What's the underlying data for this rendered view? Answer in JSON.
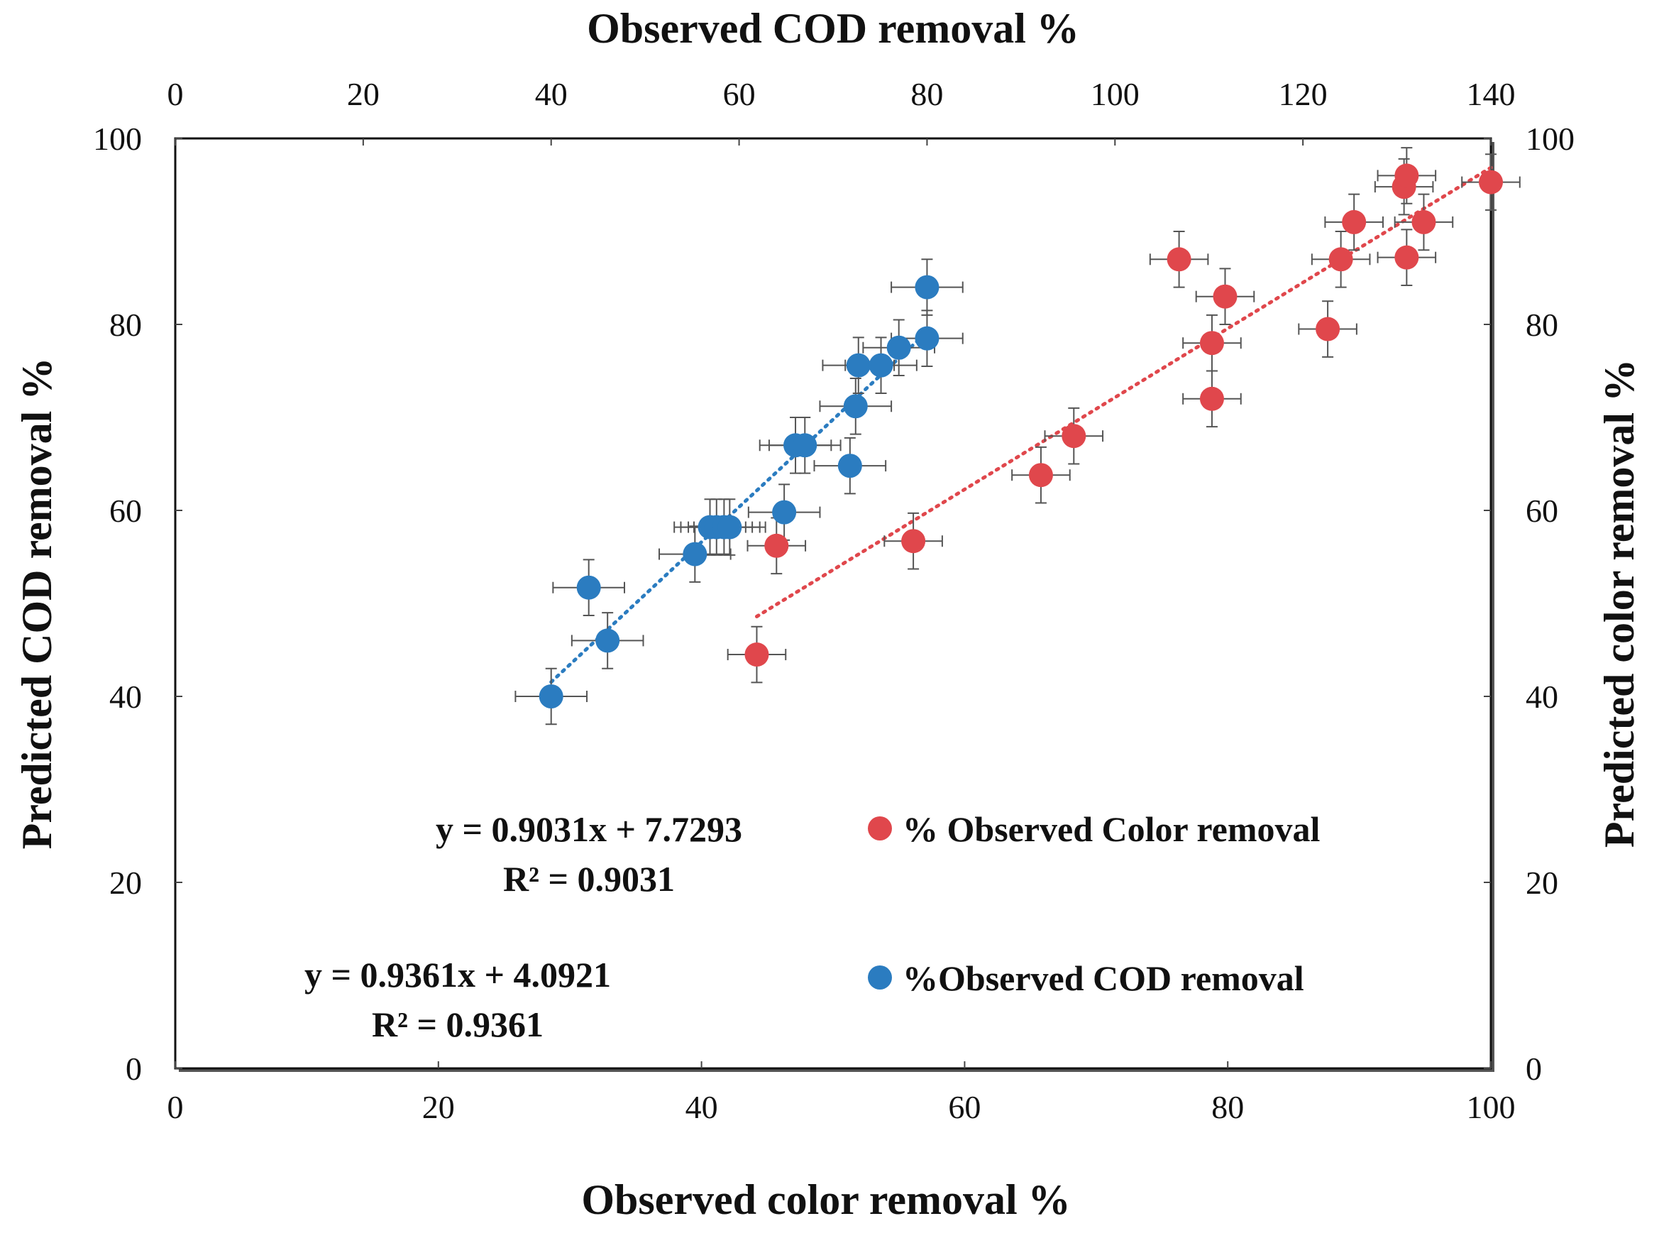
{
  "chart_data": {
    "type": "scatter",
    "title": "",
    "x_bottom_label": "Observed color removal %",
    "x_top_label": "Observed COD removal %",
    "y_left_label": "Predicted COD removal %",
    "y_right_label": "Predicted color removal %",
    "x_bottom_range": [
      0,
      100
    ],
    "x_top_range": [
      0,
      140
    ],
    "y_left_range": [
      0,
      100
    ],
    "y_right_range": [
      0,
      100
    ],
    "x_bottom_ticks": [
      "0",
      "20",
      "40",
      "60",
      "80",
      "100"
    ],
    "x_top_ticks": [
      "0",
      "20",
      "40",
      "60",
      "80",
      "100",
      "120",
      "140"
    ],
    "y_left_ticks": [
      "0",
      "20",
      "40",
      "60",
      "80",
      "100"
    ],
    "y_right_ticks": [
      "0",
      "20",
      "40",
      "60",
      "80",
      "100"
    ],
    "grid": false,
    "series": [
      {
        "name": "% Observed Color removal",
        "color": "#e0474c",
        "x_axis": "bottom",
        "y_axis": "right",
        "x": [
          44.2,
          45.7,
          56.1,
          65.8,
          68.3,
          76.3,
          78.8,
          78.8,
          79.8,
          87.6,
          88.6,
          89.6,
          93.4,
          93.6,
          93.6,
          94.9,
          100.0
        ],
        "y": [
          44.5,
          56.2,
          56.7,
          63.8,
          68.0,
          87.0,
          72.0,
          78.0,
          83.0,
          79.5,
          87.0,
          91.0,
          94.8,
          96.0,
          87.2,
          91.0,
          95.3
        ],
        "x_err": 2.2,
        "y_err": 3.0,
        "trendline": {
          "type": "linear",
          "x_range": [
            44.2,
            100.0
          ],
          "equation": "y = 0.9031x + 7.7293",
          "r2": "R² = 0.9031"
        }
      },
      {
        "name": "%Observed COD removal",
        "color": "#2b7cc0",
        "x_axis": "top",
        "y_axis": "left",
        "x": [
          40.0,
          44.0,
          46.0,
          55.3,
          56.9,
          57.6,
          58.4,
          59.0,
          64.8,
          66.0,
          67.0,
          71.8,
          72.4,
          72.7,
          75.1,
          77.0,
          80.0,
          80.0
        ],
        "y": [
          40.0,
          51.7,
          46.0,
          55.3,
          58.2,
          58.2,
          58.2,
          58.2,
          59.8,
          67.0,
          67.0,
          64.8,
          71.2,
          75.6,
          75.6,
          77.5,
          84.0,
          78.5
        ],
        "x_err": 3.8,
        "y_err": 3.0,
        "trendline": {
          "type": "linear",
          "x_range": [
            40.0,
            80.0
          ],
          "equation": "y = 0.9361x + 4.0921",
          "r2": "R² = 0.9361"
        }
      }
    ]
  }
}
